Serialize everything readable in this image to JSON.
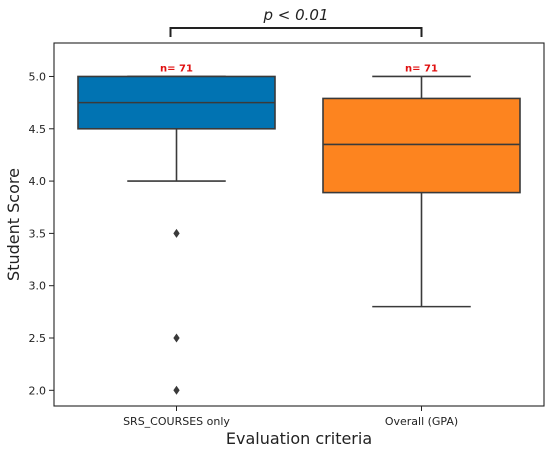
{
  "chart_data": {
    "type": "box",
    "xlabel": "Evaluation criteria",
    "ylabel": "Student Score",
    "ylim": [
      1.85,
      5.32
    ],
    "yticks": [
      "2.0",
      "2.5",
      "3.0",
      "3.5",
      "4.0",
      "4.5",
      "5.0"
    ],
    "grid": false,
    "categories": [
      "SRS_COURSES only",
      "Overall (GPA)"
    ],
    "boxes": [
      {
        "category": "SRS_COURSES only",
        "color": "#0173b2",
        "whisker_low": 4.0,
        "q1": 4.5,
        "median": 4.75,
        "q3": 5.0,
        "whisker_high": 5.0,
        "outliers": [
          3.5,
          2.5,
          2.0
        ],
        "n_label": "n= 71"
      },
      {
        "category": "Overall (GPA)",
        "color": "#fd841f",
        "whisker_low": 2.8,
        "q1": 3.89,
        "median": 4.35,
        "q3": 4.79,
        "whisker_high": 5.0,
        "outliers": [],
        "n_label": "n= 71"
      }
    ],
    "annotation": {
      "text": "p < 0.01",
      "between": [
        "SRS_COURSES only",
        "Overall (GPA)"
      ]
    }
  }
}
